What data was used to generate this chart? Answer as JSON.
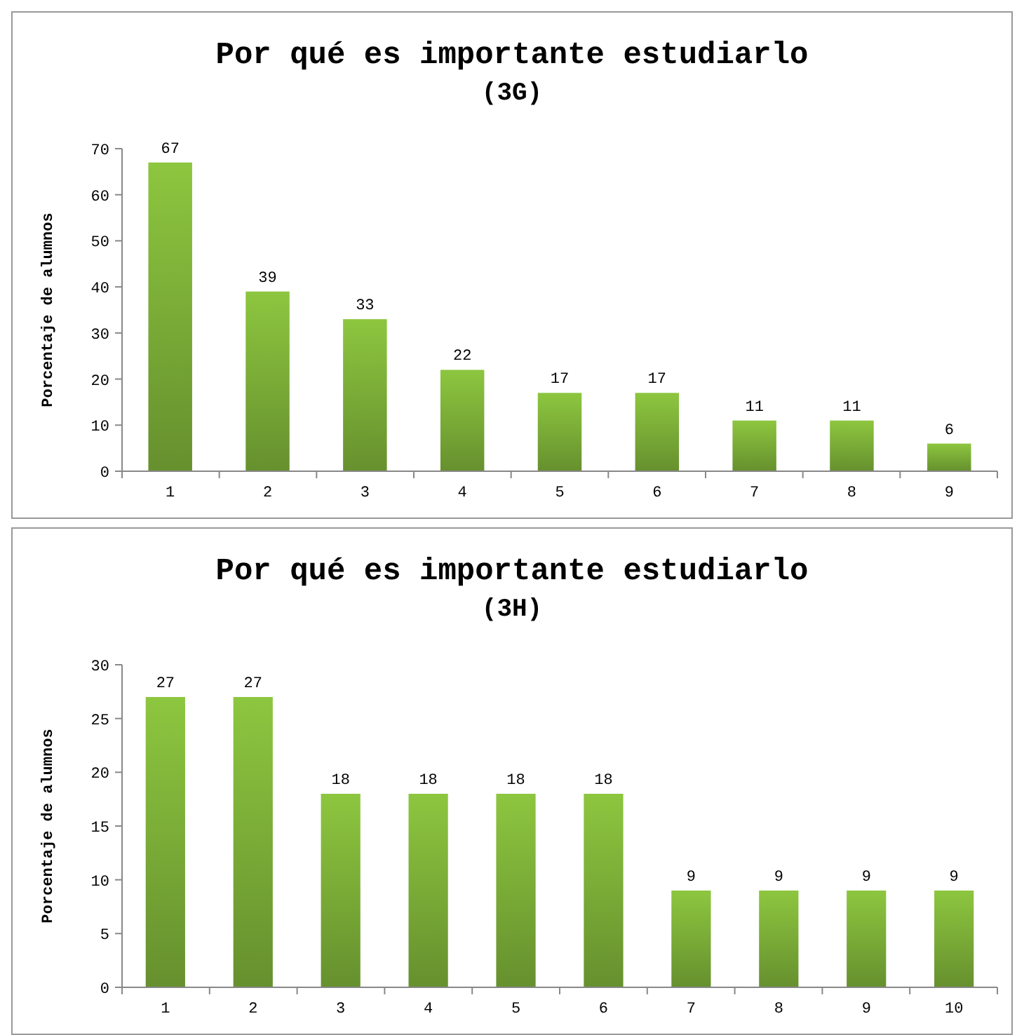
{
  "chart_data": [
    {
      "type": "bar",
      "title": "Por qué es importante estudiarlo",
      "subtitle": "(3G)",
      "ylabel": "Porcentaje de alumnos",
      "categories": [
        "1",
        "2",
        "3",
        "4",
        "5",
        "6",
        "7",
        "8",
        "9"
      ],
      "values": [
        67,
        39,
        33,
        22,
        17,
        17,
        11,
        11,
        6
      ],
      "color": "#8dc63f",
      "ylim": [
        0,
        70
      ],
      "yticks": [
        0,
        10,
        20,
        30,
        40,
        50,
        60,
        70
      ],
      "data_labels": true
    },
    {
      "type": "bar",
      "title": "Por qué es importante estudiarlo",
      "subtitle": "(3H)",
      "ylabel": "Porcentaje de alumnos",
      "categories": [
        "1",
        "2",
        "3",
        "4",
        "5",
        "6",
        "7",
        "8",
        "9",
        "10"
      ],
      "values": [
        27,
        27,
        18,
        18,
        18,
        18,
        9,
        9,
        9,
        9
      ],
      "color": "#8dc63f",
      "ylim": [
        0,
        30
      ],
      "yticks": [
        0,
        5,
        10,
        15,
        20,
        25,
        30
      ],
      "data_labels": true
    }
  ]
}
